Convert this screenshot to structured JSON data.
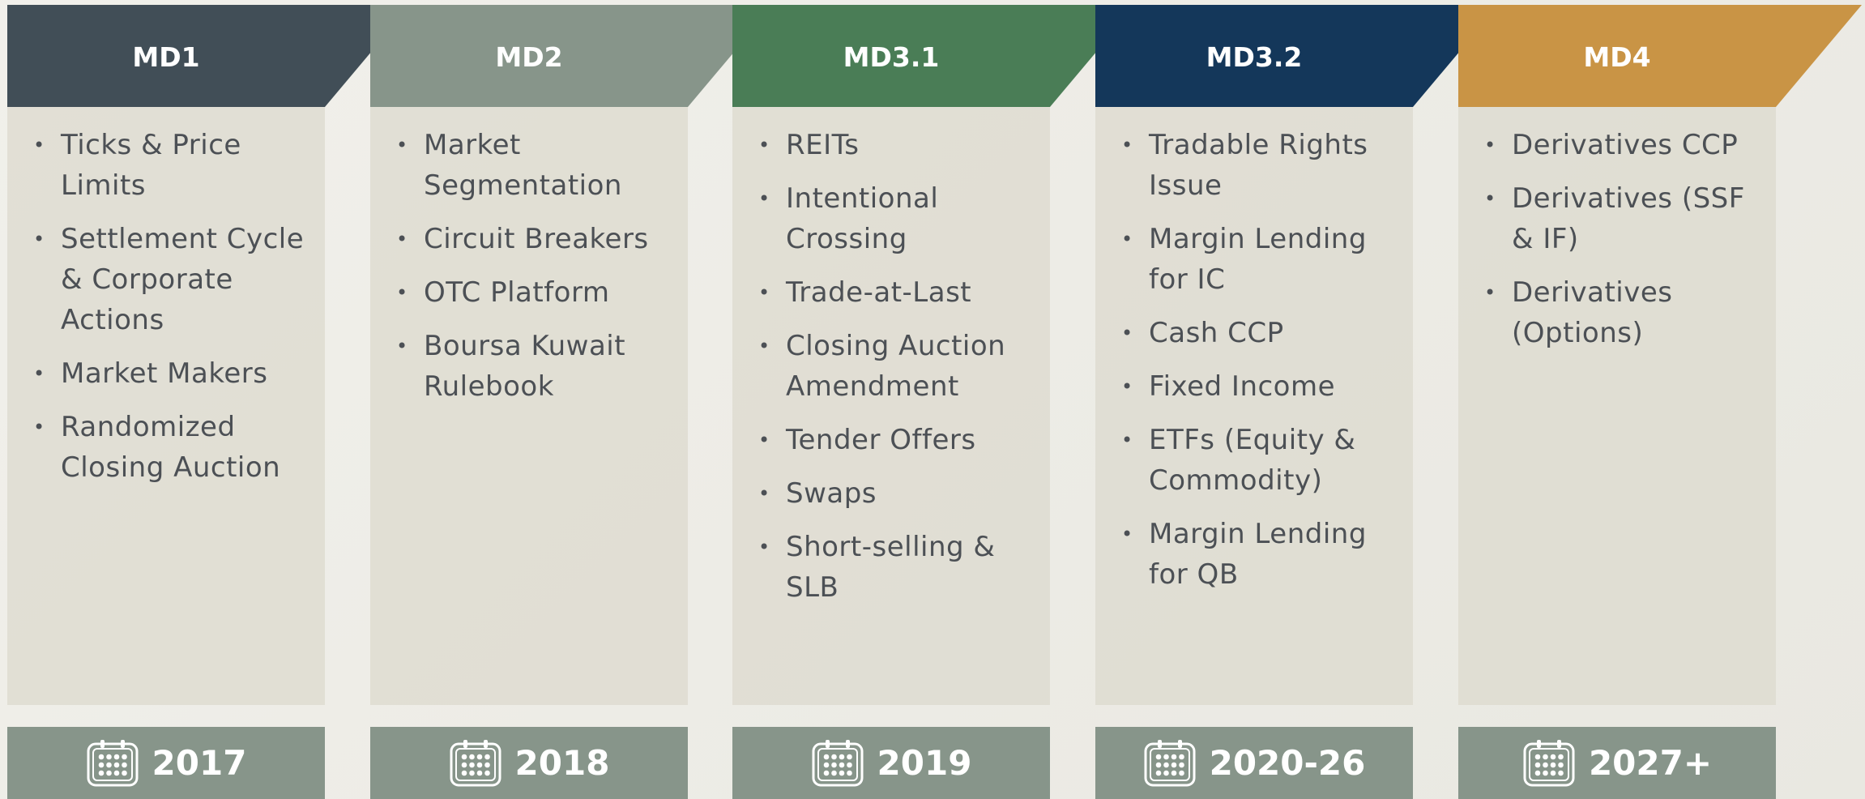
{
  "columns": [
    {
      "title": "MD1",
      "items": [
        "Ticks & Price Limits",
        "Settlement Cycle & Corporate Actions",
        "Market Makers",
        "Randomized Closing Auction"
      ],
      "year": "2017"
    },
    {
      "title": "MD2",
      "items": [
        "Market Segmentation",
        "Circuit Breakers",
        "OTC Platform",
        "Boursa Kuwait Rulebook"
      ],
      "year": "2018"
    },
    {
      "title": "MD3.1",
      "items": [
        "REITs",
        "Intentional Crossing",
        "Trade-at-Last",
        "Closing Auction Amendment",
        "Tender Offers",
        "Swaps",
        "Short-selling & SLB"
      ],
      "year": "2019"
    },
    {
      "title": "MD3.2",
      "items": [
        "Tradable Rights Issue",
        "Margin Lending for IC",
        "Cash CCP",
        "Fixed Income",
        "ETFs (Equity & Commodity)",
        "Margin Lending for QB"
      ],
      "year": "2020-26"
    },
    {
      "title": "MD4",
      "items": [
        "Derivatives CCP",
        "Derivatives (SSF & IF)",
        "Derivatives (Options)"
      ],
      "year": "2027+"
    }
  ]
}
